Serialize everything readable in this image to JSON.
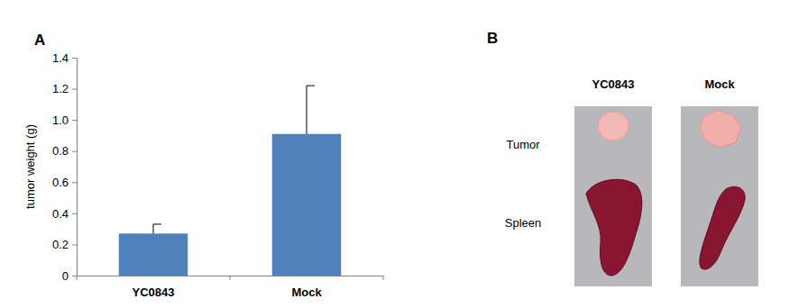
{
  "chart_data": {
    "type": "bar",
    "y_label": "tumor weight (g)",
    "categories": [
      "YC0843",
      "Mock"
    ],
    "values": [
      0.27,
      0.91
    ],
    "errors": [
      0.06,
      0.31
    ],
    "color": "#4f81bd",
    "ylim": [
      0,
      1.4
    ],
    "yticks": [
      0,
      0.2,
      0.4,
      0.6,
      0.8,
      {
        "value": 1,
        "label": "1.0"
      },
      1.2,
      1.4
    ],
    "grid": false
  },
  "figure": {
    "panel_labels": [
      "A",
      "B"
    ],
    "photo_panel": {
      "columns": [
        "YC0843",
        "Mock"
      ],
      "rows": [
        "Tumor",
        "Spleen"
      ]
    }
  }
}
